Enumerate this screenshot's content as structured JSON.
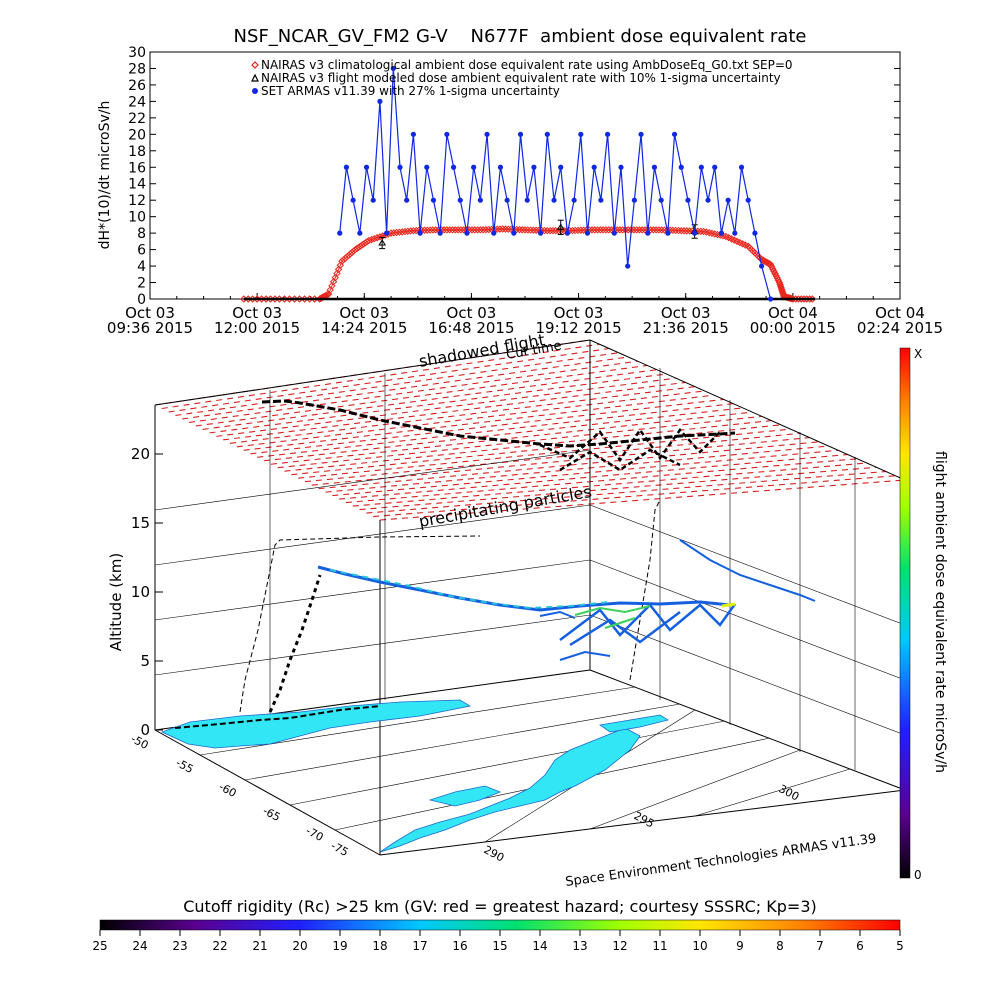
{
  "chart_data": [
    {
      "type": "line",
      "title": "NSF_NCAR_GV_FM2 G-V    N677F  ambient dose equivalent rate",
      "ylabel": "dH*(10)/dt microSv/h",
      "ylim": [
        0,
        30
      ],
      "yticks": [
        "0",
        "2",
        "4",
        "6",
        "8",
        "10",
        "12",
        "14",
        "16",
        "18",
        "20",
        "22",
        "24",
        "26",
        "28",
        "30"
      ],
      "xticks": [
        {
          "day": "Oct 03",
          "time": "09:36 2015"
        },
        {
          "day": "Oct 03",
          "time": "12:00 2015"
        },
        {
          "day": "Oct 03",
          "time": "14:24 2015"
        },
        {
          "day": "Oct 03",
          "time": "16:48 2015"
        },
        {
          "day": "Oct 03",
          "time": "19:12 2015"
        },
        {
          "day": "Oct 03",
          "time": "21:36 2015"
        },
        {
          "day": "Oct 04",
          "time": "00:00 2015"
        },
        {
          "day": "Oct 04",
          "time": "02:24 2015"
        }
      ],
      "legend": [
        "NAIRAS v3 climatological ambient dose equivalent rate using AmbDoseEq_G0.txt SEP=0",
        "NAIRAS v3 flight modeled dose ambient equivalent rate with 10% 1-sigma uncertainty",
        "SET ARMAS v11.39 with 27% 1-sigma uncertainty"
      ],
      "legend_position": "top",
      "series": [
        {
          "name": "NAIRAS v3 climatological ambient dose equivalent rate using AmbDoseEq_G0.txt SEP=0",
          "color": "#e8261c",
          "marker": "diamond",
          "x_hours": [
            11.7,
            12.5,
            13.4,
            13.6,
            13.9,
            14.2,
            14.5,
            15.0,
            15.5,
            16.0,
            16.5,
            17.0,
            17.5,
            18.0,
            18.5,
            19.0,
            19.5,
            20.0,
            20.5,
            21.0,
            21.5,
            22.0,
            22.5,
            23.0,
            23.3,
            23.5,
            23.7,
            23.8,
            24.0,
            24.5
          ],
          "values": [
            0,
            0,
            0,
            0.6,
            4.6,
            6.0,
            7.1,
            8.0,
            8.3,
            8.4,
            8.4,
            8.4,
            8.5,
            8.4,
            8.3,
            8.3,
            8.4,
            8.4,
            8.4,
            8.4,
            8.3,
            8.2,
            7.6,
            6.4,
            4.8,
            4.2,
            2.0,
            0.3,
            0,
            0
          ]
        },
        {
          "name": "NAIRAS v3 flight modeled dose ambient equivalent rate with 10% 1-sigma uncertainty",
          "color": "#000000",
          "marker": "triangle",
          "x_hours": [
            11.7,
            12.5,
            13.4,
            13.6,
            14.8,
            18.8,
            21.8,
            23.7,
            24.5
          ],
          "values": [
            0,
            0,
            0,
            0,
            6.8,
            8.7,
            8.2,
            0,
            0
          ]
        },
        {
          "name": "SET ARMAS v11.39 with 27% 1-sigma uncertainty",
          "color": "#1028e0",
          "marker": "circle",
          "x_hours": [
            13.85,
            14.0,
            14.15,
            14.3,
            14.45,
            14.6,
            14.75,
            14.9,
            15.05,
            15.2,
            15.35,
            15.5,
            15.65,
            15.8,
            15.95,
            16.1,
            16.25,
            16.4,
            16.55,
            16.7,
            16.85,
            17.0,
            17.15,
            17.3,
            17.45,
            17.6,
            17.75,
            17.9,
            18.05,
            18.2,
            18.35,
            18.5,
            18.65,
            18.8,
            18.95,
            19.1,
            19.25,
            19.4,
            19.55,
            19.7,
            19.85,
            20.0,
            20.15,
            20.3,
            20.45,
            20.6,
            20.75,
            20.9,
            21.05,
            21.2,
            21.35,
            21.5,
            21.65,
            21.8,
            21.95,
            22.1,
            22.25,
            22.4,
            22.55,
            22.7,
            22.85,
            23.0,
            23.15,
            23.3,
            23.5
          ],
          "values": [
            8,
            16,
            12,
            8,
            16,
            12,
            24,
            8,
            28,
            16,
            12,
            20,
            8,
            16,
            12,
            8,
            20,
            16,
            12,
            8,
            16,
            12,
            20,
            8,
            16,
            12,
            8,
            20,
            12,
            16,
            8,
            20,
            12,
            16,
            8,
            12,
            20,
            8,
            16,
            12,
            20,
            8,
            16,
            4,
            12,
            20,
            8,
            16,
            12,
            8,
            20,
            16,
            12,
            8,
            16,
            12,
            16,
            8,
            12,
            8,
            16,
            12,
            8,
            4,
            0
          ]
        }
      ]
    },
    {
      "type": "scatter",
      "zlabel": "Altitude (km)",
      "zticks": [
        "0",
        "5",
        "10",
        "15",
        "20"
      ],
      "lat_ticks": [
        "-50",
        "-55",
        "-60",
        "-65",
        "-70",
        "-75"
      ],
      "lon_ticks": [
        "290",
        "295",
        "300"
      ],
      "annotations": [
        "shadowed flight",
        "Cut time",
        "precipitating particles"
      ],
      "credit": "Space Environment Technologies ARMAS v11.39",
      "colorbar": {
        "label": "flight ambient dose equivalent rate microSv/h",
        "top_label": "X",
        "bottom_label": "0"
      }
    },
    {
      "type": "heatmap",
      "title": "Cutoff rigidity (Rc) >25 km (GV: red = greatest hazard; courtesy SSSRC; Kp=3)",
      "ticks": [
        "25",
        "24",
        "23",
        "22",
        "21",
        "20",
        "19",
        "18",
        "17",
        "16",
        "15",
        "14",
        "13",
        "12",
        "11",
        "10",
        "9",
        "8",
        "7",
        "6",
        "5"
      ]
    }
  ],
  "colors": {
    "nairas_climatological": "#e8261c",
    "nairas_flight": "#000000",
    "armas": "#1028e0",
    "grid_red": "#d81e1e",
    "terrain": "#33e6f5"
  }
}
